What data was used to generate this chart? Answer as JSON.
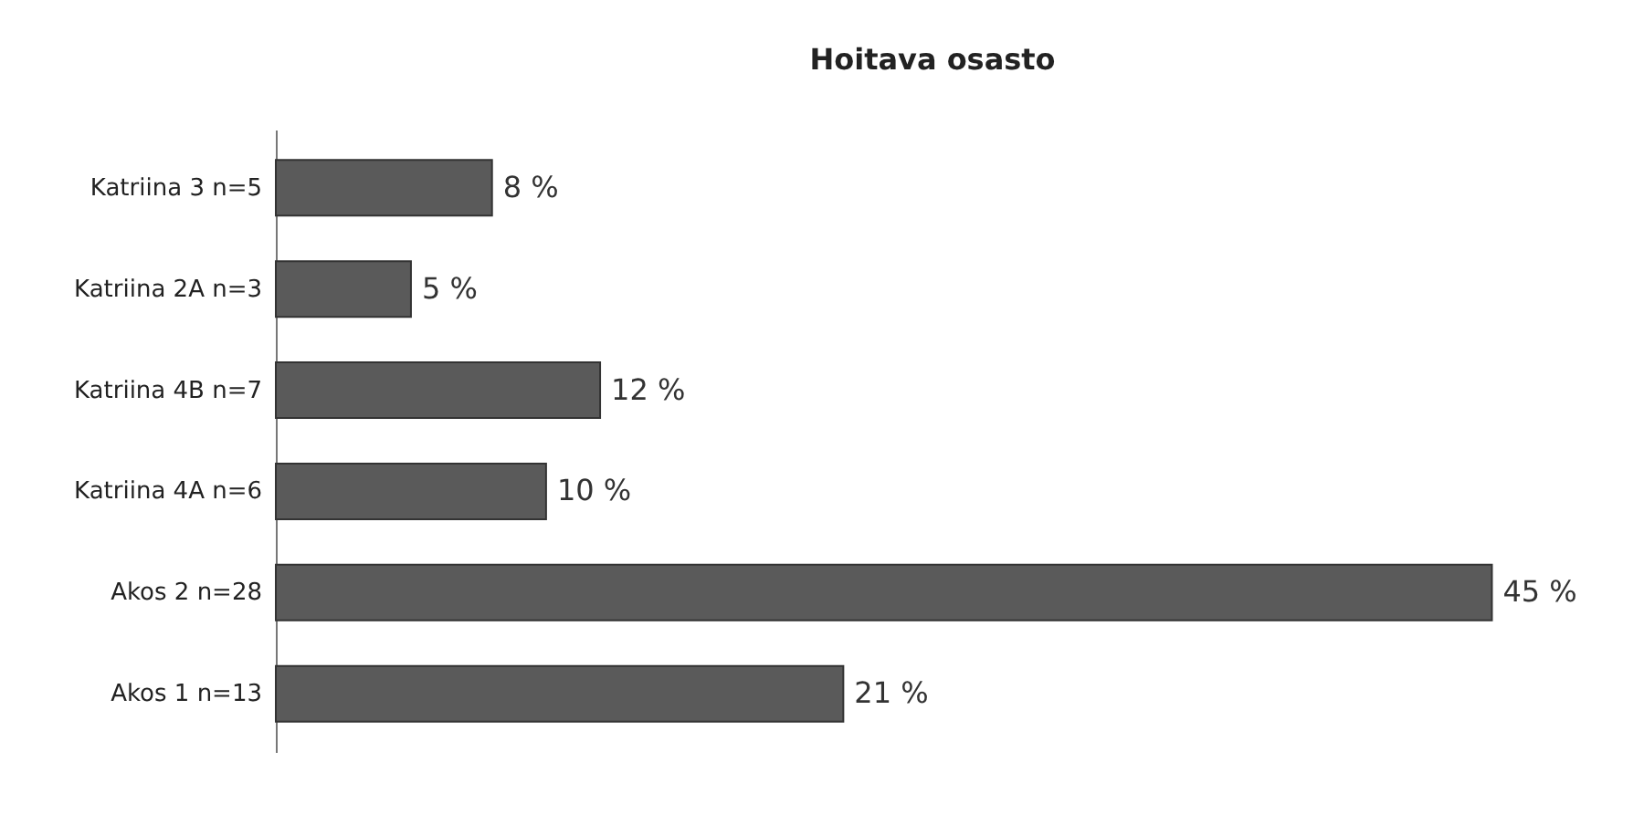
{
  "chart_data": {
    "type": "bar",
    "orientation": "horizontal",
    "title": "Hoitava osasto",
    "categories": [
      "Katriina 3 n=5",
      "Katriina 2A n=3",
      "Katriina 4B n=7",
      "Katriina 4A n=6",
      "Akos 2 n=28",
      "Akos 1 n=13"
    ],
    "values": [
      8,
      5,
      12,
      10,
      45,
      21
    ],
    "value_labels": [
      "8 %",
      "5 %",
      "12 %",
      "10 %",
      "45 %",
      "21 %"
    ],
    "color": "#5a5a5a",
    "tick_labels": "y"
  }
}
